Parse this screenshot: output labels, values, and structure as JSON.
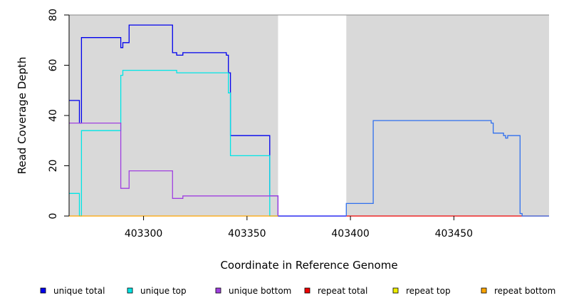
{
  "chart_data": {
    "type": "line",
    "xlabel": "Coordinate in Reference Genome",
    "ylabel": "Read Coverage Depth",
    "xlim": [
      403264,
      403496
    ],
    "ylim": [
      0,
      80
    ],
    "x_ticks": [
      403300,
      403350,
      403400,
      403450
    ],
    "x_tick_labels": [
      "403300",
      "403350",
      "403400",
      "403450"
    ],
    "y_ticks": [
      0,
      20,
      40,
      60,
      80
    ],
    "y_tick_labels": [
      "0",
      "20",
      "40",
      "60",
      "80"
    ],
    "shaded_regions": [
      [
        403264,
        403365
      ],
      [
        403398,
        403496
      ]
    ],
    "shade_color": "#d9d9d9",
    "legend_position": "bottom",
    "series": [
      {
        "name": "unique total",
        "color": "#0000ee",
        "points": [
          [
            403264,
            46
          ],
          [
            403269,
            46
          ],
          [
            403269,
            37
          ],
          [
            403270,
            37
          ],
          [
            403270,
            71
          ],
          [
            403289,
            71
          ],
          [
            403289,
            67
          ],
          [
            403290,
            67
          ],
          [
            403290,
            69
          ],
          [
            403293,
            69
          ],
          [
            403293,
            76
          ],
          [
            403314,
            76
          ],
          [
            403314,
            65
          ],
          [
            403316,
            65
          ],
          [
            403316,
            64
          ],
          [
            403319,
            64
          ],
          [
            403319,
            65
          ],
          [
            403340,
            65
          ],
          [
            403340,
            64
          ],
          [
            403341,
            64
          ],
          [
            403341,
            57
          ],
          [
            403342,
            57
          ],
          [
            403342,
            32
          ],
          [
            403361,
            32
          ],
          [
            403361,
            8
          ],
          [
            403365,
            8
          ],
          [
            403365,
            0
          ],
          [
            403398,
            0
          ]
        ]
      },
      {
        "name": "unique top",
        "color": "#00e5e5",
        "points": [
          [
            403264,
            9
          ],
          [
            403269,
            9
          ],
          [
            403269,
            0
          ],
          [
            403270,
            0
          ],
          [
            403270,
            34
          ],
          [
            403289,
            34
          ],
          [
            403289,
            56
          ],
          [
            403290,
            56
          ],
          [
            403290,
            58
          ],
          [
            403316,
            58
          ],
          [
            403316,
            57
          ],
          [
            403341,
            57
          ],
          [
            403341,
            49
          ],
          [
            403342,
            49
          ],
          [
            403342,
            24
          ],
          [
            403361,
            24
          ],
          [
            403361,
            0
          ],
          [
            403365,
            0
          ]
        ]
      },
      {
        "name": "unique bottom",
        "color": "#a040e0",
        "points": [
          [
            403264,
            37
          ],
          [
            403289,
            37
          ],
          [
            403289,
            11
          ],
          [
            403293,
            11
          ],
          [
            403293,
            18
          ],
          [
            403314,
            18
          ],
          [
            403314,
            7
          ],
          [
            403319,
            7
          ],
          [
            403319,
            8
          ],
          [
            403361,
            8
          ],
          [
            403361,
            8
          ],
          [
            403365,
            8
          ],
          [
            403365,
            0
          ]
        ]
      },
      {
        "name": "repeat total",
        "color": "#ee0000",
        "points": [
          [
            403398,
            0
          ],
          [
            403496,
            0
          ]
        ]
      },
      {
        "name": "repeat top",
        "color": "#eeee00",
        "points": []
      },
      {
        "name": "repeat bottom",
        "color": "#ffa500",
        "points": [
          [
            403264,
            0
          ],
          [
            403365,
            0
          ]
        ]
      },
      {
        "name": "",
        "color": "#3070ee",
        "points": [
          [
            403398,
            0
          ],
          [
            403398,
            5
          ],
          [
            403411,
            5
          ],
          [
            403411,
            38
          ],
          [
            403468,
            38
          ],
          [
            403468,
            37
          ],
          [
            403469,
            37
          ],
          [
            403469,
            33
          ],
          [
            403474,
            33
          ],
          [
            403474,
            32
          ],
          [
            403475,
            32
          ],
          [
            403475,
            31
          ],
          [
            403476,
            31
          ],
          [
            403476,
            32
          ],
          [
            403482,
            32
          ],
          [
            403482,
            1
          ],
          [
            403483,
            1
          ],
          [
            403483,
            0
          ],
          [
            403496,
            0
          ]
        ]
      }
    ]
  }
}
